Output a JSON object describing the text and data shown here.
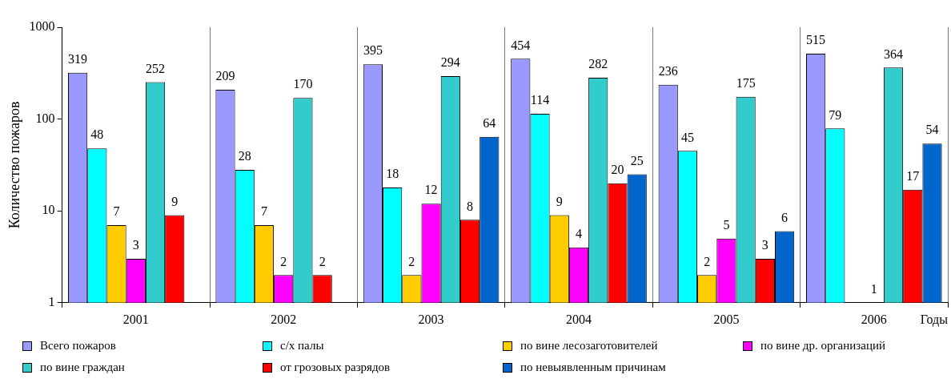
{
  "chart_data": {
    "type": "bar",
    "ylabel": "Количество пожаров",
    "xlabel": "Годы",
    "categories": [
      "2001",
      "2002",
      "2003",
      "2004",
      "2005",
      "2006"
    ],
    "series": [
      {
        "name": "Всего пожаров",
        "color": "#9999ff",
        "values": [
          319,
          209,
          395,
          454,
          236,
          515
        ]
      },
      {
        "name": "с/х палы",
        "color": "#00ffff",
        "values": [
          48,
          28,
          18,
          114,
          45,
          79
        ]
      },
      {
        "name": "по вине лесозаготовителей",
        "color": "#ffcc00",
        "values": [
          7,
          7,
          2,
          9,
          2,
          null
        ]
      },
      {
        "name": "по вине др. организаций",
        "color": "#ff00ff",
        "values": [
          3,
          2,
          12,
          4,
          5,
          1
        ]
      },
      {
        "name": "по вине граждан",
        "color": "#33cccc",
        "values": [
          252,
          170,
          294,
          282,
          175,
          364
        ]
      },
      {
        "name": "от грозовых разрядов",
        "color": "#ff0000",
        "values": [
          9,
          2,
          8,
          20,
          3,
          17
        ]
      },
      {
        "name": "по невыявленным причинам",
        "color": "#0066cc",
        "values": [
          null,
          null,
          64,
          25,
          6,
          54
        ]
      }
    ],
    "log": true,
    "ylim": [
      1,
      1000
    ],
    "yticks": [
      1,
      10,
      100,
      1000
    ],
    "grid": "x",
    "legend": "bottom",
    "data_labels": true
  }
}
